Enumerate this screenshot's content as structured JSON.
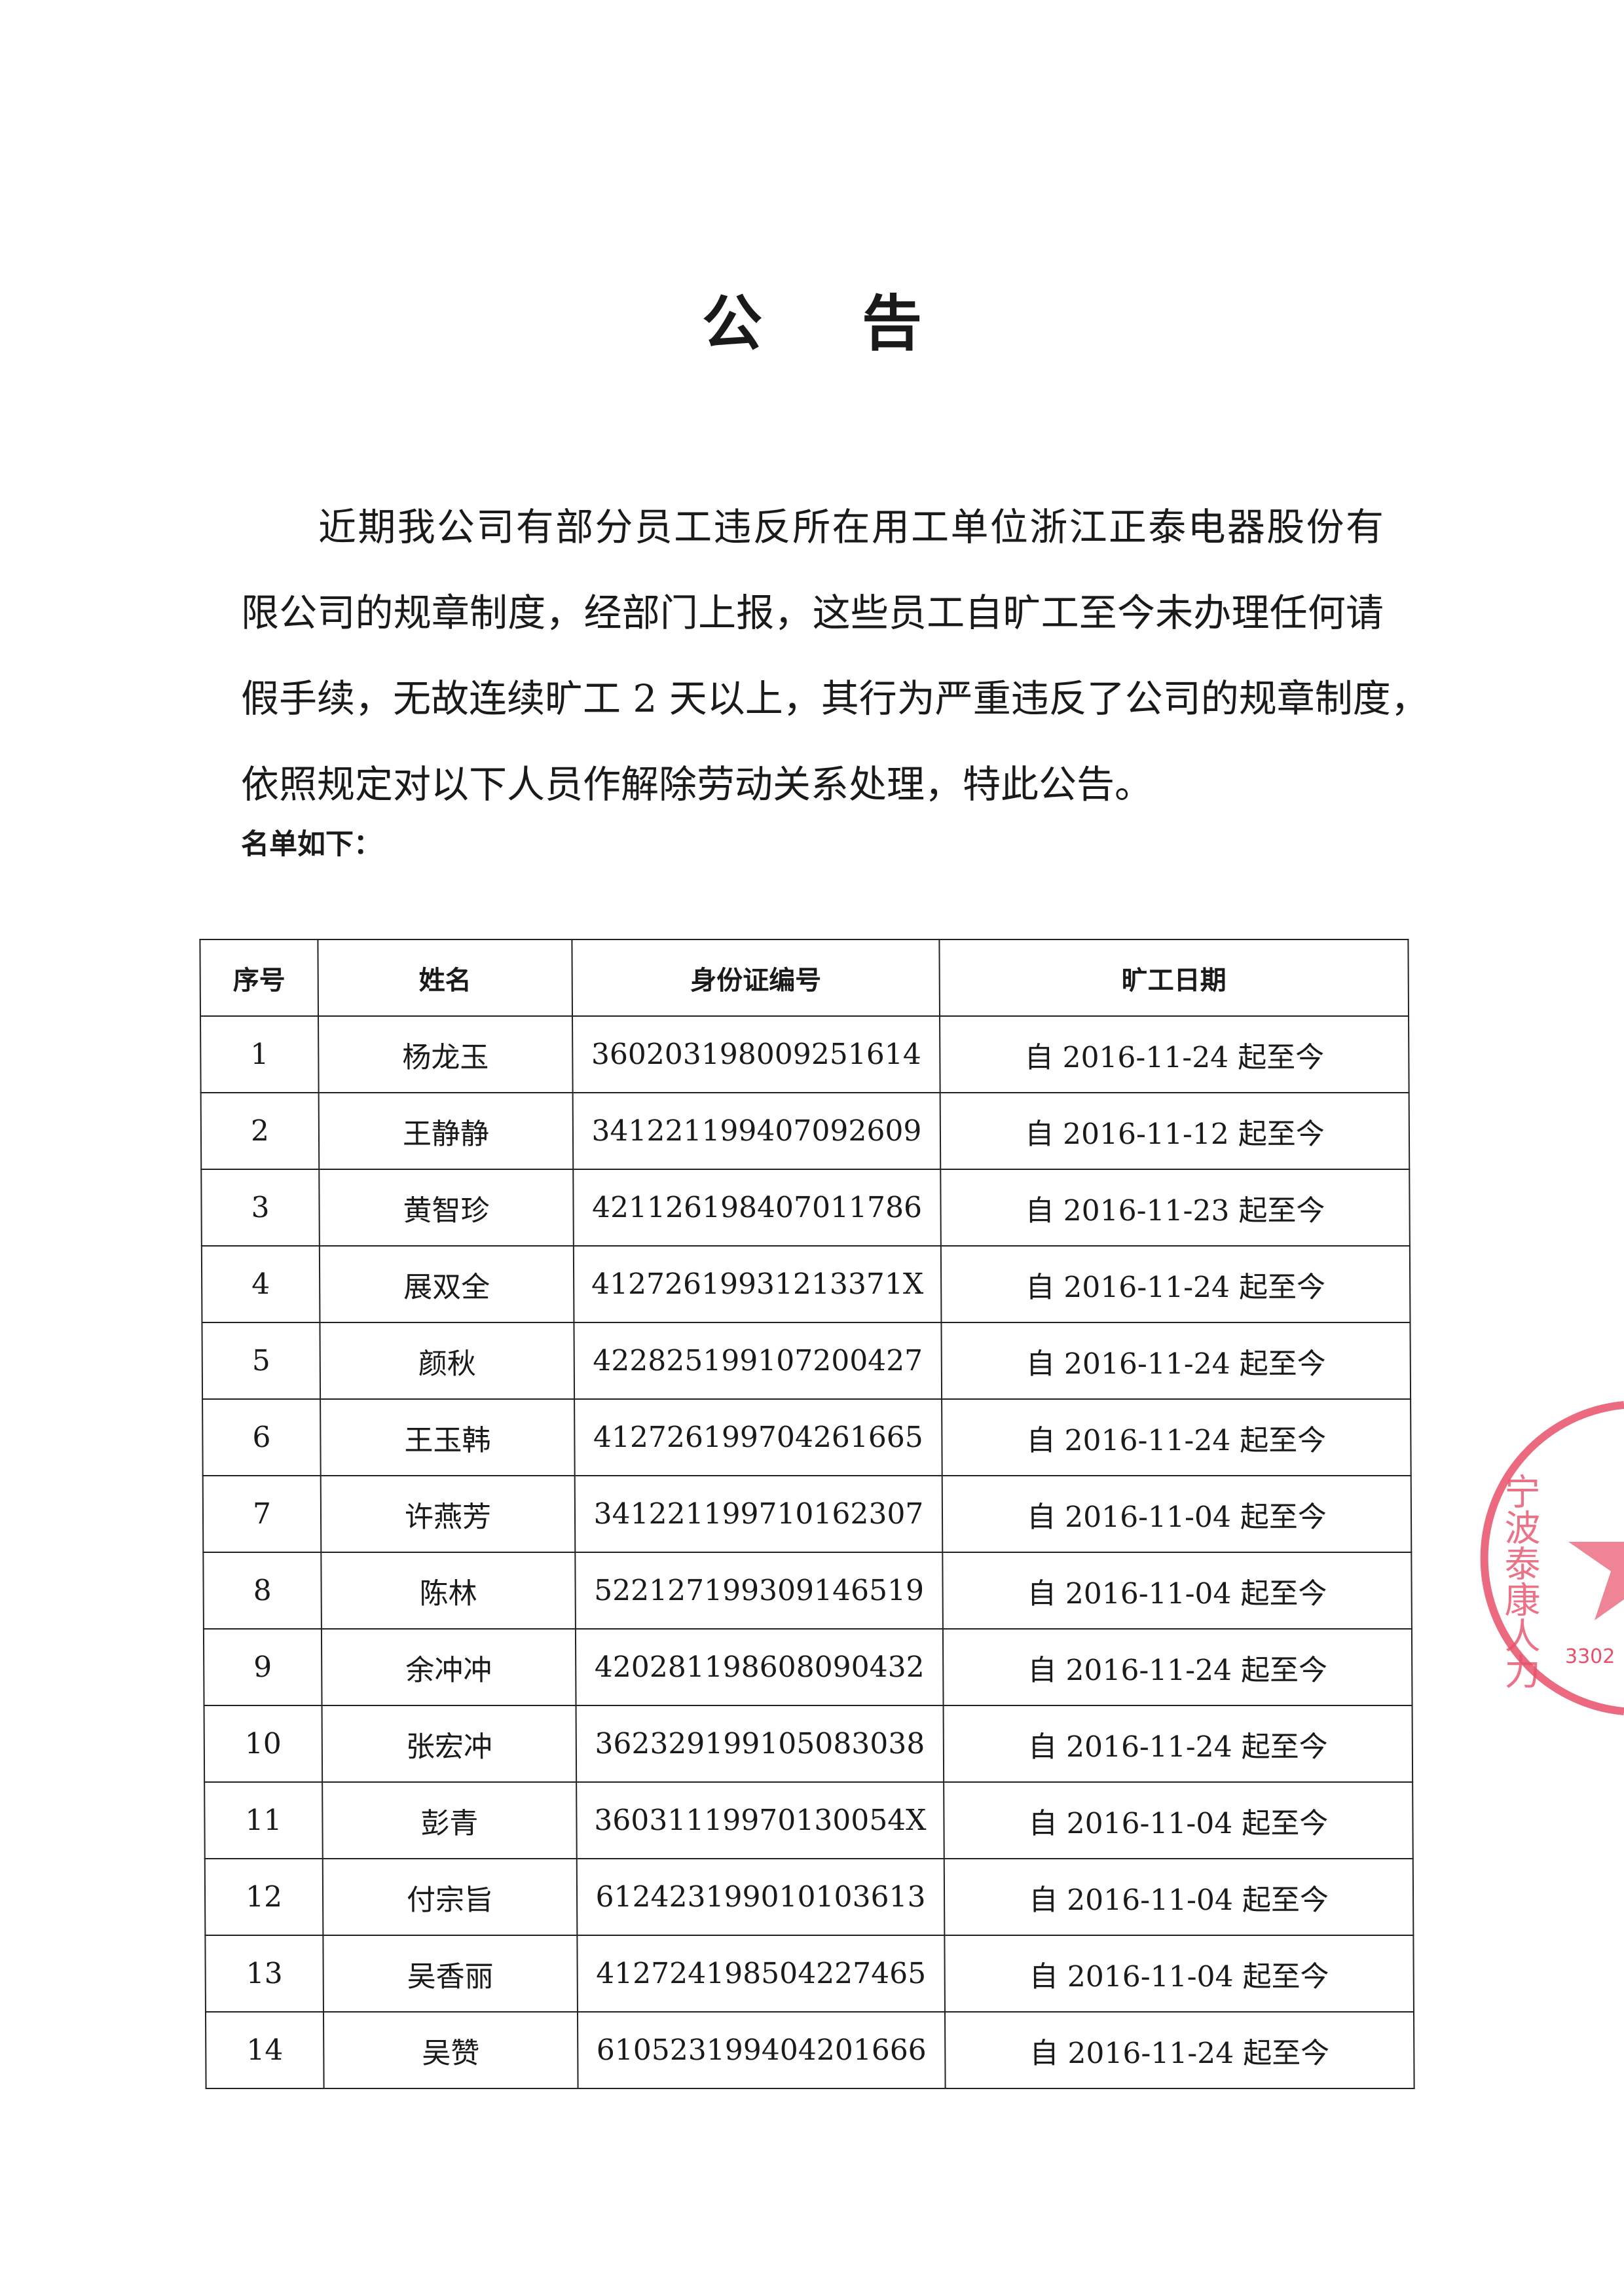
{
  "title": "公 告",
  "paragraph_lines": [
    "近期我公司有部分员工违反所在用工单位浙江正泰电器股份有",
    "限公司的规章制度，经部门上报，这些员工自旷工至今未办理任何请",
    "假手续，无故连续旷工 2 天以上，其行为严重违反了公司的规章制度，",
    "依照规定对以下人员作解除劳动关系处理，特此公告。"
  ],
  "list_label": "名单如下：",
  "table": {
    "headers": [
      "序号",
      "姓名",
      "身份证编号",
      "旷工日期"
    ],
    "rows": [
      [
        "1",
        "杨龙玉",
        "360203198009251614",
        "自 2016-11-24 起至今"
      ],
      [
        "2",
        "王静静",
        "341221199407092609",
        "自 2016-11-12 起至今"
      ],
      [
        "3",
        "黄智珍",
        "421126198407011786",
        "自 2016-11-23 起至今"
      ],
      [
        "4",
        "展双全",
        "41272619931213371X",
        "自 2016-11-24 起至今"
      ],
      [
        "5",
        "颜秋",
        "422825199107200427",
        "自 2016-11-24 起至今"
      ],
      [
        "6",
        "王玉韩",
        "412726199704261665",
        "自 2016-11-24 起至今"
      ],
      [
        "7",
        "许燕芳",
        "341221199710162307",
        "自 2016-11-04 起至今"
      ],
      [
        "8",
        "陈林",
        "522127199309146519",
        "自 2016-11-04 起至今"
      ],
      [
        "9",
        "余冲冲",
        "420281198608090432",
        "自 2016-11-24 起至今"
      ],
      [
        "10",
        "张宏冲",
        "362329199105083038",
        "自 2016-11-24 起至今"
      ],
      [
        "11",
        "彭青",
        "36031119970130054X",
        "自 2016-11-04 起至今"
      ],
      [
        "12",
        "付宗旨",
        "612423199010103613",
        "自 2016-11-04 起至今"
      ],
      [
        "13",
        "吴香丽",
        "412724198504227465",
        "自 2016-11-04 起至今"
      ],
      [
        "14",
        "吴赞",
        "610523199404201666",
        "自 2016-11-24 起至今"
      ]
    ]
  },
  "stamp": {
    "text": "宁波泰康人力",
    "code": "3302",
    "color": "#e8506a"
  }
}
